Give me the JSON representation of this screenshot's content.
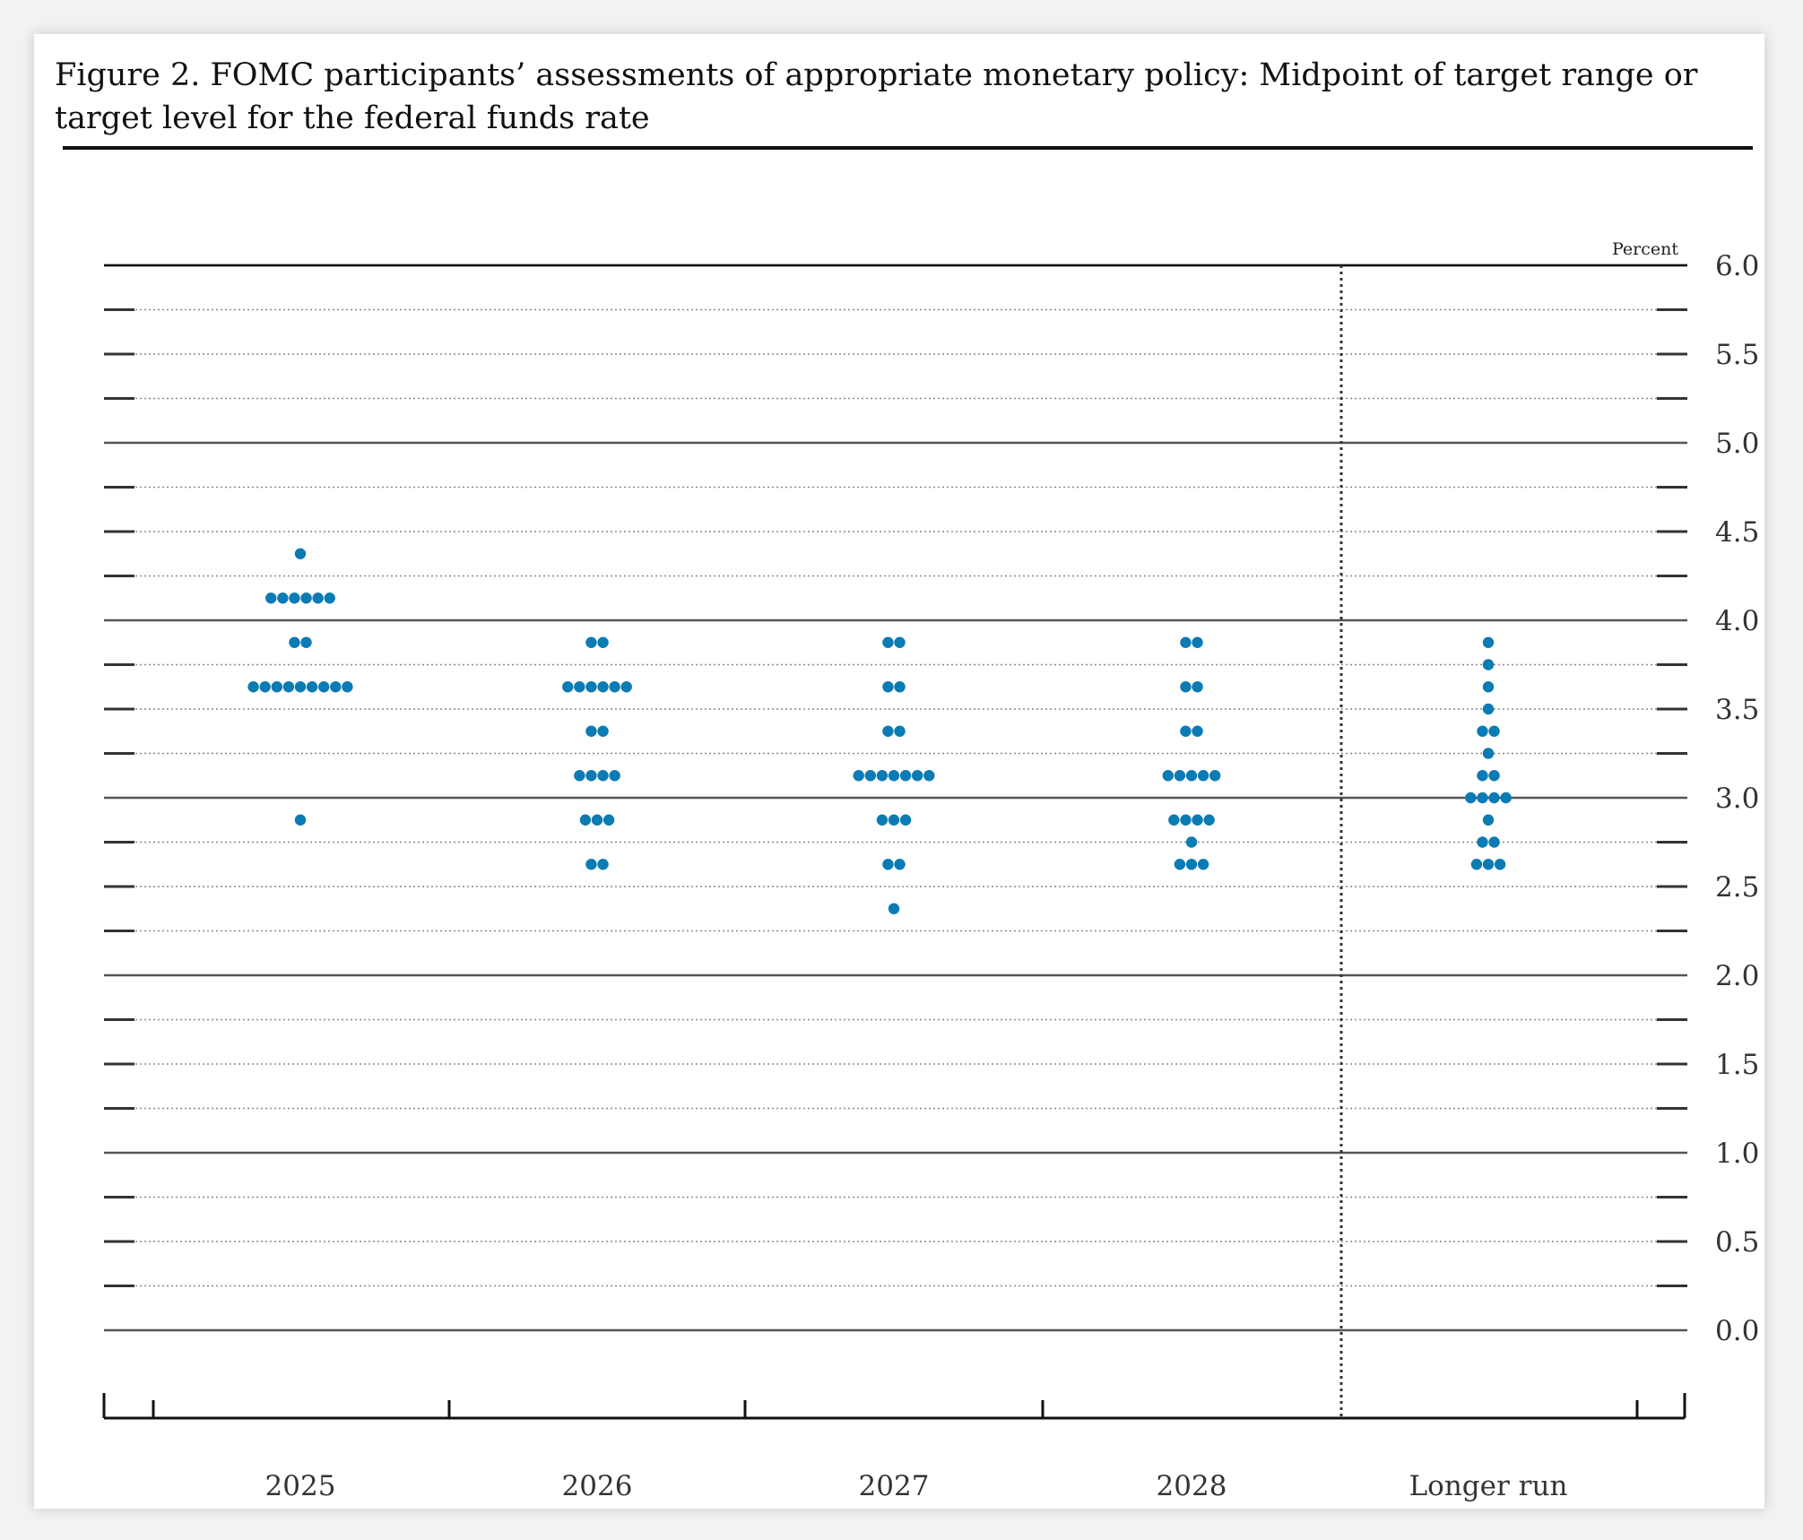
{
  "figure": {
    "title": "Figure 2. FOMC participants’ assessments of appropriate monetary policy: Midpoint of target range or target level for the federal funds rate"
  },
  "chart_data": {
    "type": "scatter",
    "title": "Figure 2. FOMC participants’ assessments of appropriate monetary policy: Midpoint of target range or target level for the federal funds rate",
    "ylabel": "Percent",
    "ylim": [
      0,
      6
    ],
    "yticks": [
      "0.0",
      "0.5",
      "1.0",
      "1.5",
      "2.0",
      "2.5",
      "3.0",
      "3.5",
      "4.0",
      "4.5",
      "5.0",
      "5.5",
      "6.0"
    ],
    "ytick_values": [
      0,
      0.5,
      1,
      1.5,
      2,
      2.5,
      3,
      3.5,
      4,
      4.5,
      5,
      5.5,
      6
    ],
    "categories": [
      "2025",
      "2026",
      "2027",
      "2028",
      "Longer run"
    ],
    "dot_color": "#0b7bb4",
    "grid": "dotted at 0.25 intervals, solid at whole numbers",
    "dots": [
      {
        "category": "2025",
        "rates": [
          {
            "y": 4.375,
            "count": 1
          },
          {
            "y": 4.125,
            "count": 6
          },
          {
            "y": 3.875,
            "count": 2
          },
          {
            "y": 3.625,
            "count": 9
          },
          {
            "y": 2.875,
            "count": 1
          }
        ]
      },
      {
        "category": "2026",
        "rates": [
          {
            "y": 3.875,
            "count": 2
          },
          {
            "y": 3.625,
            "count": 6
          },
          {
            "y": 3.375,
            "count": 2
          },
          {
            "y": 3.125,
            "count": 4
          },
          {
            "y": 2.875,
            "count": 3
          },
          {
            "y": 2.625,
            "count": 2
          }
        ]
      },
      {
        "category": "2027",
        "rates": [
          {
            "y": 3.875,
            "count": 2
          },
          {
            "y": 3.625,
            "count": 2
          },
          {
            "y": 3.375,
            "count": 2
          },
          {
            "y": 3.125,
            "count": 7
          },
          {
            "y": 2.875,
            "count": 3
          },
          {
            "y": 2.625,
            "count": 2
          },
          {
            "y": 2.375,
            "count": 1
          }
        ]
      },
      {
        "category": "2028",
        "rates": [
          {
            "y": 3.875,
            "count": 2
          },
          {
            "y": 3.625,
            "count": 2
          },
          {
            "y": 3.375,
            "count": 2
          },
          {
            "y": 3.125,
            "count": 5
          },
          {
            "y": 2.875,
            "count": 4
          },
          {
            "y": 2.75,
            "count": 1
          },
          {
            "y": 2.625,
            "count": 3
          }
        ]
      },
      {
        "category": "Longer run",
        "rates": [
          {
            "y": 3.875,
            "count": 1
          },
          {
            "y": 3.75,
            "count": 1
          },
          {
            "y": 3.625,
            "count": 1
          },
          {
            "y": 3.5,
            "count": 1
          },
          {
            "y": 3.375,
            "count": 2
          },
          {
            "y": 3.25,
            "count": 1
          },
          {
            "y": 3.125,
            "count": 2
          },
          {
            "y": 3.0,
            "count": 4
          },
          {
            "y": 2.875,
            "count": 1
          },
          {
            "y": 2.75,
            "count": 2
          },
          {
            "y": 2.625,
            "count": 3
          }
        ]
      }
    ]
  }
}
